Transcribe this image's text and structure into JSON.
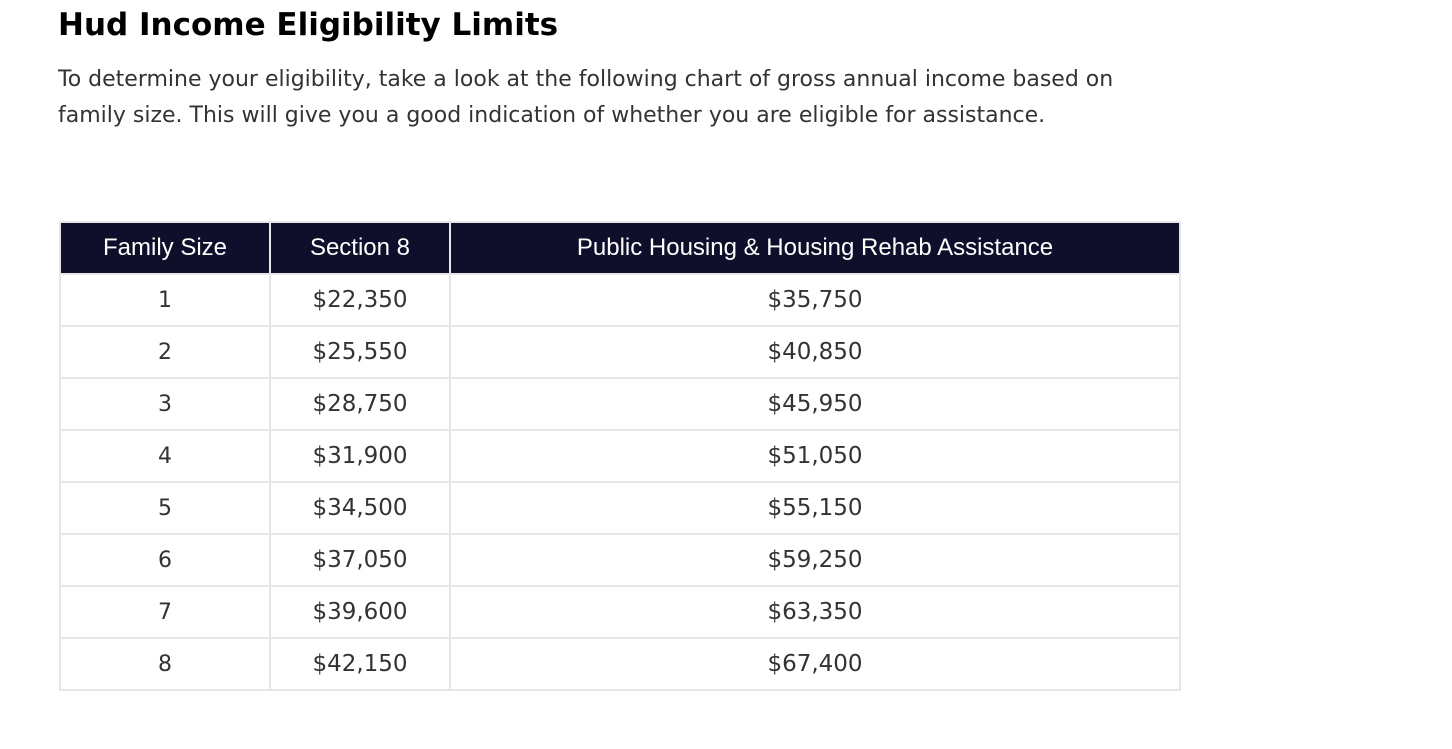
{
  "page": {
    "title": "Hud Income Eligibility Limits",
    "intro": "To determine your eligibility, take a look at the following chart of gross annual income based on family size. This will give you a good indication of whether you are eligible for assistance."
  },
  "table": {
    "headers": [
      "Family Size",
      "Section 8",
      "Public Housing & Housing Rehab Assistance"
    ],
    "rows": [
      [
        "1",
        "$22,350",
        "$35,750"
      ],
      [
        "2",
        "$25,550",
        "$40,850"
      ],
      [
        "3",
        "$28,750",
        "$45,950"
      ],
      [
        "4",
        "$31,900",
        "$51,050"
      ],
      [
        "5",
        "$34,500",
        "$55,150"
      ],
      [
        "6",
        "$37,050",
        "$59,250"
      ],
      [
        "7",
        "$39,600",
        "$63,350"
      ],
      [
        "8",
        "$42,150",
        "$67,400"
      ]
    ]
  },
  "colors": {
    "header_background": "#0f0f2b",
    "header_text": "#ffffff",
    "border": "#e6e6e6",
    "body_text": "#333333",
    "title_text": "#000000"
  }
}
